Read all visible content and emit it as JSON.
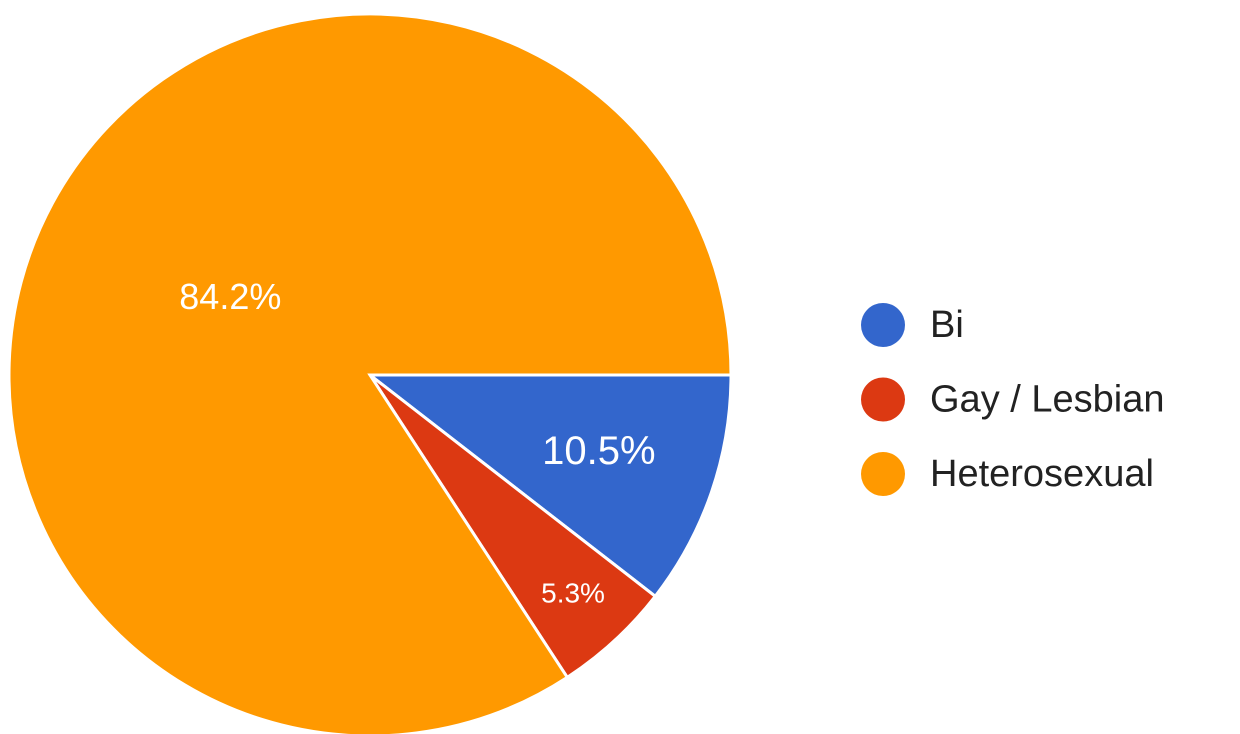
{
  "chart_data": {
    "type": "pie",
    "categories": [
      "Bi",
      "Gay / Lesbian",
      "Heterosexual"
    ],
    "values": [
      10.5,
      5.3,
      84.2
    ],
    "value_labels": [
      "10.5%",
      "5.3%",
      "84.2%"
    ],
    "colors": [
      "#3366cc",
      "#dc3912",
      "#ff9900"
    ],
    "legend": "right"
  }
}
